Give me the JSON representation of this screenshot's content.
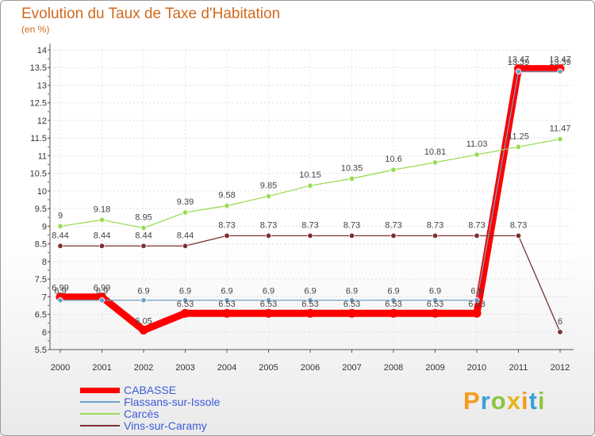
{
  "title": "Evolution du Taux de Taxe d'Habitation",
  "subtitle": "(en %)",
  "brand": "Proxiti",
  "chart_data": {
    "type": "line",
    "categories": [
      "2000",
      "2001",
      "2002",
      "2003",
      "2004",
      "2005",
      "2006",
      "2007",
      "2008",
      "2009",
      "2010",
      "2011",
      "2012"
    ],
    "ylim": [
      5.5,
      14
    ],
    "yticks": [
      "5.5",
      "6",
      "6.5",
      "7",
      "7.5",
      "8",
      "8.5",
      "9",
      "9.5",
      "10",
      "10.5",
      "11",
      "11.5",
      "12",
      "12.5",
      "13",
      "13.5",
      "14"
    ],
    "series": [
      {
        "name": "CABASSE",
        "color": "#ff0000",
        "values": [
          6.99,
          6.99,
          6.05,
          6.53,
          6.53,
          6.53,
          6.53,
          6.53,
          6.53,
          6.53,
          6.53,
          13.47,
          13.47
        ],
        "labels": [
          "6.99",
          "6.99",
          "6.05",
          "6.53",
          "6.53",
          "6.53",
          "6.53",
          "6.53",
          "6.53",
          "6.53",
          "6.53",
          "13.47",
          "13.47"
        ]
      },
      {
        "name": "Flassans-sur-Issole",
        "color": "#6fa0c8",
        "values": [
          6.9,
          6.9,
          6.9,
          6.9,
          6.9,
          6.9,
          6.9,
          6.9,
          6.9,
          6.9,
          6.9,
          13.39,
          13.39
        ],
        "labels": [
          "6.9",
          "6.9",
          "6.9",
          "6.9",
          "6.9",
          "6.9",
          "6.9",
          "6.9",
          "6.9",
          "6.9",
          "6.9",
          "13.39",
          "13.39"
        ]
      },
      {
        "name": "Carcès",
        "color": "#99dd55",
        "values": [
          9,
          9.18,
          8.95,
          9.39,
          9.58,
          9.85,
          10.15,
          10.35,
          10.6,
          10.81,
          11.03,
          11.25,
          11.47
        ],
        "labels": [
          "9",
          "9.18",
          "8.95",
          "9.39",
          "9.58",
          "9.85",
          "10.15",
          "10.35",
          "10.6",
          "10.81",
          "11.03",
          "11.25",
          "11.47"
        ]
      },
      {
        "name": "Vins-sur-Caramy",
        "color": "#7a3030",
        "values": [
          8.44,
          8.44,
          8.44,
          8.44,
          8.73,
          8.73,
          8.73,
          8.73,
          8.73,
          8.73,
          8.73,
          8.73,
          6
        ],
        "labels": [
          "8.44",
          "8.44",
          "8.44",
          "8.44",
          "8.73",
          "8.73",
          "8.73",
          "8.73",
          "8.73",
          "8.73",
          "8.73",
          "8.73",
          "6"
        ]
      }
    ]
  }
}
